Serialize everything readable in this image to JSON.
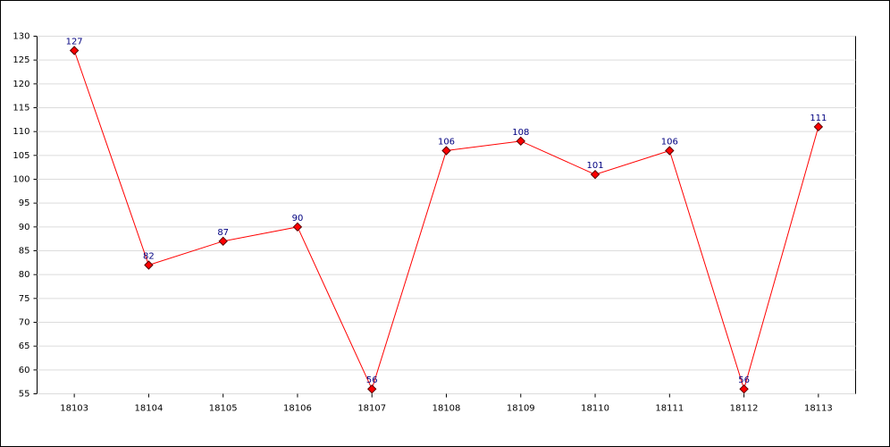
{
  "chart_data": {
    "type": "line",
    "categories": [
      "18103",
      "18104",
      "18105",
      "18106",
      "18107",
      "18108",
      "18109",
      "18110",
      "18111",
      "18112",
      "18113"
    ],
    "values": [
      127,
      82,
      87,
      90,
      56,
      106,
      108,
      101,
      106,
      56,
      111
    ],
    "color": "#ff0000",
    "ylim": [
      55,
      130
    ],
    "yticks": [
      55,
      60,
      65,
      70,
      75,
      80,
      85,
      90,
      95,
      100,
      105,
      110,
      115,
      120,
      125,
      130
    ],
    "grid": true
  }
}
